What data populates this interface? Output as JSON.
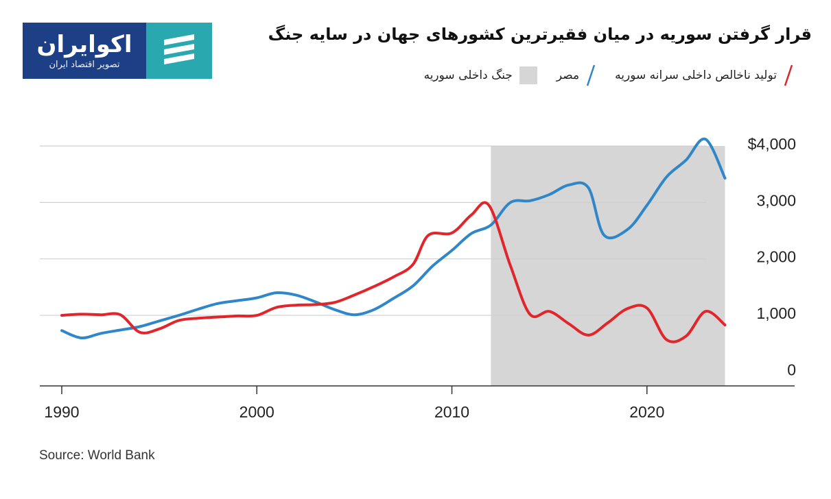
{
  "logo": {
    "name": "اکوایران",
    "tagline": "تصویر اقتصاد ایران",
    "icon": "ecoiran-logo-mark",
    "colors": {
      "text_bg": "#1d3f85",
      "mark_bg": "#2aa8b0"
    }
  },
  "source": "Source: World Bank",
  "chart_data": {
    "type": "line",
    "title": "قرار گرفتن سوریه در میان فقیرترین کشورهای جهان در سایه جنگ",
    "xlabel": "",
    "ylabel": "",
    "xlim": [
      1990,
      2027.5
    ],
    "ylim": [
      -250,
      4000
    ],
    "x_ticks": [
      1990,
      2000,
      2010,
      2020
    ],
    "y_ticks": [
      {
        "value": 0,
        "label": "0"
      },
      {
        "value": 1000,
        "label": "1,000"
      },
      {
        "value": 2000,
        "label": "2,000"
      },
      {
        "value": 3000,
        "label": "3,000"
      },
      {
        "value": 4000,
        "label": "$4,000"
      }
    ],
    "grid": true,
    "legend_position": "top-right",
    "shaded_regions": [
      {
        "label": "جنگ داخلی سوریه",
        "x_start": 2012,
        "x_end": 2024,
        "color": "#d6d6d6"
      }
    ],
    "series": [
      {
        "name": "تولید ناخالص داخلی سرانه سوریه",
        "color": "#e0262b",
        "points": [
          [
            1990,
            1000
          ],
          [
            1991,
            1020
          ],
          [
            1992,
            1010
          ],
          [
            1993,
            1010
          ],
          [
            1994,
            700
          ],
          [
            1995,
            760
          ],
          [
            1996,
            910
          ],
          [
            1997,
            950
          ],
          [
            1998,
            970
          ],
          [
            1999,
            990
          ],
          [
            2000,
            1000
          ],
          [
            2001,
            1140
          ],
          [
            2002,
            1180
          ],
          [
            2003,
            1190
          ],
          [
            2004,
            1230
          ],
          [
            2005,
            1360
          ],
          [
            2006,
            1510
          ],
          [
            2007,
            1680
          ],
          [
            2008,
            1900
          ],
          [
            2008.8,
            2420
          ],
          [
            2010,
            2460
          ],
          [
            2011,
            2780
          ],
          [
            2011.9,
            2950
          ],
          [
            2013,
            1880
          ],
          [
            2014,
            1020
          ],
          [
            2015,
            1070
          ],
          [
            2016,
            850
          ],
          [
            2017,
            650
          ],
          [
            2018,
            870
          ],
          [
            2019,
            1120
          ],
          [
            2020,
            1130
          ],
          [
            2021,
            570
          ],
          [
            2022,
            630
          ],
          [
            2023,
            1070
          ],
          [
            2024,
            830
          ]
        ]
      },
      {
        "name": "مصر",
        "color": "#2f86c8",
        "points": [
          [
            1990,
            730
          ],
          [
            1991,
            600
          ],
          [
            1992,
            680
          ],
          [
            1993,
            740
          ],
          [
            1994,
            800
          ],
          [
            1995,
            900
          ],
          [
            1996,
            1000
          ],
          [
            1997,
            1110
          ],
          [
            1998,
            1210
          ],
          [
            1999,
            1260
          ],
          [
            2000,
            1310
          ],
          [
            2001,
            1400
          ],
          [
            2002,
            1360
          ],
          [
            2003,
            1240
          ],
          [
            2004,
            1100
          ],
          [
            2005,
            1010
          ],
          [
            2006,
            1100
          ],
          [
            2007,
            1300
          ],
          [
            2008,
            1520
          ],
          [
            2009,
            1870
          ],
          [
            2010,
            2150
          ],
          [
            2011,
            2450
          ],
          [
            2012,
            2600
          ],
          [
            2013,
            3000
          ],
          [
            2014,
            3030
          ],
          [
            2015,
            3140
          ],
          [
            2016,
            3310
          ],
          [
            2017,
            3260
          ],
          [
            2017.8,
            2420
          ],
          [
            2019,
            2520
          ],
          [
            2020,
            2950
          ],
          [
            2021,
            3450
          ],
          [
            2022,
            3750
          ],
          [
            2023,
            4120
          ],
          [
            2024,
            3430
          ]
        ]
      }
    ]
  }
}
